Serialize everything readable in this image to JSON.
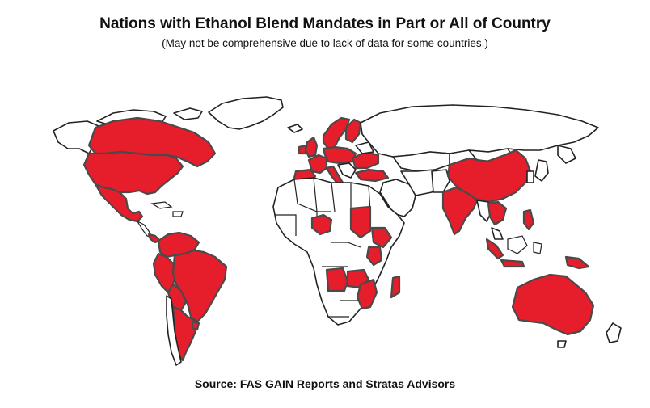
{
  "header": {
    "title": "Nations with Ethanol Blend Mandates in Part or All of Country",
    "subtitle": "(May not be comprehensive due to lack of data for some countries.)"
  },
  "footer": {
    "source": "Source: FAS GAIN Reports and Stratas Advisors"
  },
  "legend_colors": {
    "mandate": "#e61d2b",
    "no_mandate": "#ffffff"
  },
  "map": {
    "type": "choropleth",
    "highlighted_countries": [
      "Canada",
      "United States",
      "Mexico",
      "Panama",
      "Costa Rica",
      "Colombia",
      "Ecuador",
      "Peru",
      "Brazil",
      "Bolivia",
      "Paraguay",
      "Uruguay",
      "Argentina",
      "Norway",
      "Sweden",
      "Finland",
      "United Kingdom",
      "Ireland",
      "France",
      "Spain",
      "Portugal",
      "Germany",
      "Poland",
      "Italy",
      "Ukraine",
      "Romania",
      "Turkey",
      "Sudan",
      "Ethiopia",
      "Nigeria",
      "Kenya",
      "Angola",
      "Malawi",
      "Mozambique",
      "Zimbabwe",
      "Zambia",
      "India",
      "China",
      "Thailand",
      "Vietnam",
      "Philippines",
      "Indonesia",
      "Papua New Guinea",
      "Australia"
    ]
  }
}
